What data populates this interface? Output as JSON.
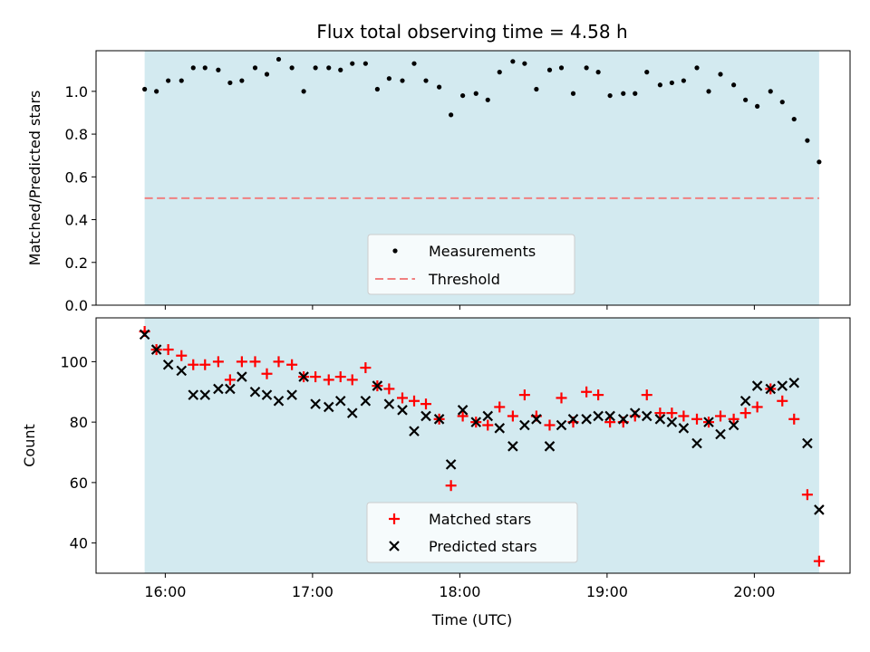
{
  "chart_data": [
    {
      "type": "scatter",
      "title": "Flux total observing time = 4.58 h",
      "xlabel": "",
      "ylabel": "Matched/Predicted stars",
      "xlim": [
        15.53,
        20.65
      ],
      "ylim": [
        0.0,
        1.19
      ],
      "yticks": [
        "0.0",
        "0.2",
        "0.4",
        "0.6",
        "0.8",
        "1.0"
      ],
      "yticks_values": [
        0.0,
        0.2,
        0.4,
        0.6,
        0.8,
        1.0
      ],
      "observing_window": [
        15.86,
        20.44
      ],
      "window_color": "#d3eaf0",
      "threshold": {
        "value": 0.5,
        "color": "#f08080",
        "label": "Threshold"
      },
      "series": [
        {
          "name": "Measurements",
          "color": "#000000",
          "marker": "dot",
          "points": [
            [
              15.86,
              1.01
            ],
            [
              15.94,
              1.0
            ],
            [
              16.02,
              1.05
            ],
            [
              16.11,
              1.05
            ],
            [
              16.19,
              1.11
            ],
            [
              16.27,
              1.11
            ],
            [
              16.36,
              1.1
            ],
            [
              16.44,
              1.04
            ],
            [
              16.52,
              1.05
            ],
            [
              16.61,
              1.11
            ],
            [
              16.69,
              1.08
            ],
            [
              16.77,
              1.15
            ],
            [
              16.86,
              1.11
            ],
            [
              16.94,
              1.0
            ],
            [
              17.02,
              1.11
            ],
            [
              17.11,
              1.11
            ],
            [
              17.19,
              1.1
            ],
            [
              17.27,
              1.13
            ],
            [
              17.36,
              1.13
            ],
            [
              17.44,
              1.01
            ],
            [
              17.52,
              1.06
            ],
            [
              17.61,
              1.05
            ],
            [
              17.69,
              1.13
            ],
            [
              17.77,
              1.05
            ],
            [
              17.86,
              1.02
            ],
            [
              17.94,
              0.89
            ],
            [
              18.02,
              0.98
            ],
            [
              18.11,
              0.99
            ],
            [
              18.19,
              0.96
            ],
            [
              18.27,
              1.09
            ],
            [
              18.36,
              1.14
            ],
            [
              18.44,
              1.13
            ],
            [
              18.52,
              1.01
            ],
            [
              18.61,
              1.1
            ],
            [
              18.69,
              1.11
            ],
            [
              18.77,
              0.99
            ],
            [
              18.86,
              1.11
            ],
            [
              18.94,
              1.09
            ],
            [
              19.02,
              0.98
            ],
            [
              19.11,
              0.99
            ],
            [
              19.19,
              0.99
            ],
            [
              19.27,
              1.09
            ],
            [
              19.36,
              1.03
            ],
            [
              19.44,
              1.04
            ],
            [
              19.52,
              1.05
            ],
            [
              19.61,
              1.11
            ],
            [
              19.69,
              1.0
            ],
            [
              19.77,
              1.08
            ],
            [
              19.86,
              1.03
            ],
            [
              19.94,
              0.96
            ],
            [
              20.02,
              0.93
            ],
            [
              20.11,
              1.0
            ],
            [
              20.19,
              0.95
            ],
            [
              20.27,
              0.87
            ],
            [
              20.36,
              0.77
            ],
            [
              20.44,
              0.67
            ]
          ]
        }
      ],
      "legend": [
        "Measurements",
        "Threshold"
      ],
      "legend_position": "lower-center"
    },
    {
      "type": "scatter",
      "title": "",
      "xlabel": "Time (UTC)",
      "ylabel": "Count",
      "xlim": [
        15.53,
        20.65
      ],
      "ylim": [
        30.0,
        114.5
      ],
      "yticks": [
        "40",
        "60",
        "80",
        "100"
      ],
      "yticks_values": [
        40,
        60,
        80,
        100
      ],
      "xticks": [
        "16:00",
        "17:00",
        "18:00",
        "19:00",
        "20:00"
      ],
      "xticks_values": [
        16,
        17,
        18,
        19,
        20
      ],
      "observing_window": [
        15.86,
        20.44
      ],
      "window_color": "#d3eaf0",
      "series": [
        {
          "name": "Matched stars",
          "color": "#ff0000",
          "marker": "plus",
          "points": [
            [
              15.86,
              110
            ],
            [
              15.94,
              104
            ],
            [
              16.02,
              104
            ],
            [
              16.11,
              102
            ],
            [
              16.19,
              99
            ],
            [
              16.27,
              99
            ],
            [
              16.36,
              100
            ],
            [
              16.44,
              94
            ],
            [
              16.52,
              100
            ],
            [
              16.61,
              100
            ],
            [
              16.69,
              96
            ],
            [
              16.77,
              100
            ],
            [
              16.86,
              99
            ],
            [
              16.94,
              95
            ],
            [
              17.02,
              95
            ],
            [
              17.11,
              94
            ],
            [
              17.19,
              95
            ],
            [
              17.27,
              94
            ],
            [
              17.36,
              98
            ],
            [
              17.44,
              92
            ],
            [
              17.52,
              91
            ],
            [
              17.61,
              88
            ],
            [
              17.69,
              87
            ],
            [
              17.77,
              86
            ],
            [
              17.86,
              81
            ],
            [
              17.94,
              59
            ],
            [
              18.02,
              82
            ],
            [
              18.11,
              80
            ],
            [
              18.19,
              79
            ],
            [
              18.27,
              85
            ],
            [
              18.36,
              82
            ],
            [
              18.44,
              89
            ],
            [
              18.52,
              82
            ],
            [
              18.61,
              79
            ],
            [
              18.69,
              88
            ],
            [
              18.77,
              80
            ],
            [
              18.86,
              90
            ],
            [
              18.94,
              89
            ],
            [
              19.02,
              80
            ],
            [
              19.11,
              80
            ],
            [
              19.19,
              82
            ],
            [
              19.27,
              89
            ],
            [
              19.36,
              83
            ],
            [
              19.44,
              83
            ],
            [
              19.52,
              82
            ],
            [
              19.61,
              81
            ],
            [
              19.69,
              80
            ],
            [
              19.77,
              82
            ],
            [
              19.86,
              81
            ],
            [
              19.94,
              83
            ],
            [
              20.02,
              85
            ],
            [
              20.11,
              91
            ],
            [
              20.19,
              87
            ],
            [
              20.27,
              81
            ],
            [
              20.36,
              56
            ],
            [
              20.44,
              34
            ]
          ]
        },
        {
          "name": "Predicted stars",
          "color": "#000000",
          "marker": "x",
          "points": [
            [
              15.86,
              109
            ],
            [
              15.94,
              104
            ],
            [
              16.02,
              99
            ],
            [
              16.11,
              97
            ],
            [
              16.19,
              89
            ],
            [
              16.27,
              89
            ],
            [
              16.36,
              91
            ],
            [
              16.44,
              91
            ],
            [
              16.52,
              95
            ],
            [
              16.61,
              90
            ],
            [
              16.69,
              89
            ],
            [
              16.77,
              87
            ],
            [
              16.86,
              89
            ],
            [
              16.94,
              95
            ],
            [
              17.02,
              86
            ],
            [
              17.11,
              85
            ],
            [
              17.19,
              87
            ],
            [
              17.27,
              83
            ],
            [
              17.36,
              87
            ],
            [
              17.44,
              92
            ],
            [
              17.52,
              86
            ],
            [
              17.61,
              84
            ],
            [
              17.69,
              77
            ],
            [
              17.77,
              82
            ],
            [
              17.86,
              81
            ],
            [
              17.94,
              66
            ],
            [
              18.02,
              84
            ],
            [
              18.11,
              80
            ],
            [
              18.19,
              82
            ],
            [
              18.27,
              78
            ],
            [
              18.36,
              72
            ],
            [
              18.44,
              79
            ],
            [
              18.52,
              81
            ],
            [
              18.61,
              72
            ],
            [
              18.69,
              79
            ],
            [
              18.77,
              81
            ],
            [
              18.86,
              81
            ],
            [
              18.94,
              82
            ],
            [
              19.02,
              82
            ],
            [
              19.11,
              81
            ],
            [
              19.19,
              83
            ],
            [
              19.27,
              82
            ],
            [
              19.36,
              81
            ],
            [
              19.44,
              80
            ],
            [
              19.52,
              78
            ],
            [
              19.61,
              73
            ],
            [
              19.69,
              80
            ],
            [
              19.77,
              76
            ],
            [
              19.86,
              79
            ],
            [
              19.94,
              87
            ],
            [
              20.02,
              92
            ],
            [
              20.11,
              91
            ],
            [
              20.19,
              92
            ],
            [
              20.27,
              93
            ],
            [
              20.36,
              73
            ],
            [
              20.44,
              51
            ]
          ]
        }
      ],
      "legend": [
        "Matched stars",
        "Predicted stars"
      ],
      "legend_position": "lower-center"
    }
  ]
}
